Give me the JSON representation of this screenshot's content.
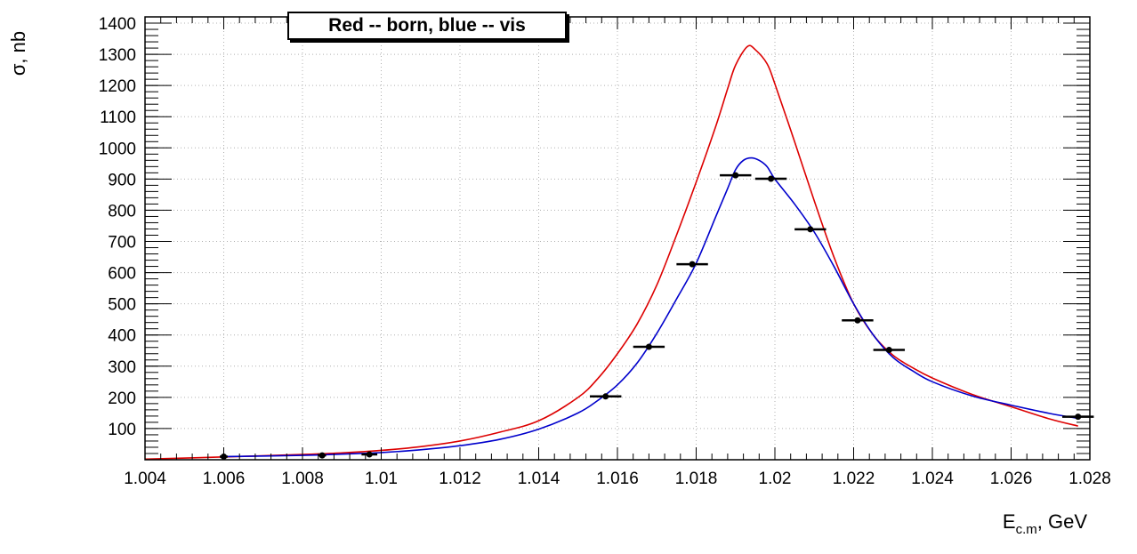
{
  "chart_data": {
    "type": "line",
    "title": "Red -- born, blue -- vis",
    "ylabel": "σ, nb",
    "xlabel_main": "E",
    "xlabel_sub": "c.m",
    "xlabel_suffix": ", GeV",
    "xlim": [
      1.004,
      1.028
    ],
    "ylim": [
      0,
      1420
    ],
    "x_ticks": [
      "1.004",
      "1.006",
      "1.008",
      "1.01",
      "1.012",
      "1.014",
      "1.016",
      "1.018",
      "1.02",
      "1.022",
      "1.024",
      "1.026",
      "1.028"
    ],
    "y_ticks": [
      "100",
      "200",
      "300",
      "400",
      "500",
      "600",
      "700",
      "800",
      "900",
      "1000",
      "1100",
      "1200",
      "1300",
      "1400"
    ],
    "grid": true,
    "series": [
      {
        "color": "#dd0000",
        "x": [
          1.004,
          1.006,
          1.008,
          1.009,
          1.01,
          1.011,
          1.012,
          1.013,
          1.014,
          1.015,
          1.0155,
          1.016,
          1.0165,
          1.017,
          1.0175,
          1.018,
          1.0185,
          1.0188,
          1.019,
          1.0193,
          1.0195,
          1.0198,
          1.02,
          1.0205,
          1.021,
          1.0215,
          1.022,
          1.0225,
          1.023,
          1.0235,
          1.024,
          1.025,
          1.026,
          1.027,
          1.0277
        ],
        "values": [
          2,
          9,
          17,
          22,
          30,
          42,
          60,
          88,
          125,
          200,
          260,
          340,
          435,
          560,
          720,
          890,
          1070,
          1190,
          1265,
          1325,
          1315,
          1270,
          1205,
          1020,
          830,
          650,
          500,
          400,
          335,
          295,
          262,
          210,
          170,
          130,
          108
        ]
      },
      {
        "color": "#0000cc",
        "x": [
          1.006,
          1.008,
          1.009,
          1.01,
          1.011,
          1.012,
          1.013,
          1.014,
          1.015,
          1.0155,
          1.016,
          1.0165,
          1.017,
          1.0175,
          1.018,
          1.0185,
          1.0188,
          1.019,
          1.0192,
          1.0194,
          1.0196,
          1.0198,
          1.02,
          1.0205,
          1.021,
          1.0215,
          1.022,
          1.0225,
          1.023,
          1.0235,
          1.024,
          1.025,
          1.026,
          1.027,
          1.0277
        ],
        "values": [
          10,
          14,
          18,
          23,
          32,
          45,
          65,
          98,
          150,
          190,
          240,
          310,
          405,
          515,
          630,
          780,
          870,
          930,
          960,
          968,
          960,
          940,
          900,
          820,
          730,
          620,
          500,
          400,
          328,
          285,
          250,
          205,
          175,
          148,
          133
        ]
      }
    ],
    "points": [
      {
        "x": 1.006,
        "y": 10,
        "xerr": 0.0001
      },
      {
        "x": 1.0085,
        "y": 14,
        "xerr": 0.0001
      },
      {
        "x": 1.0097,
        "y": 17,
        "xerr": 0.0002
      },
      {
        "x": 1.0157,
        "y": 203,
        "xerr": 0.0004
      },
      {
        "x": 1.0168,
        "y": 362,
        "xerr": 0.0004
      },
      {
        "x": 1.0179,
        "y": 627,
        "xerr": 0.0004
      },
      {
        "x": 1.019,
        "y": 912,
        "xerr": 0.0004
      },
      {
        "x": 1.0199,
        "y": 901,
        "xerr": 0.0004
      },
      {
        "x": 1.0209,
        "y": 739,
        "xerr": 0.0004
      },
      {
        "x": 1.0221,
        "y": 447,
        "xerr": 0.0004
      },
      {
        "x": 1.0229,
        "y": 352,
        "xerr": 0.0004
      },
      {
        "x": 1.0277,
        "y": 138,
        "xerr": 0.0004
      }
    ]
  }
}
